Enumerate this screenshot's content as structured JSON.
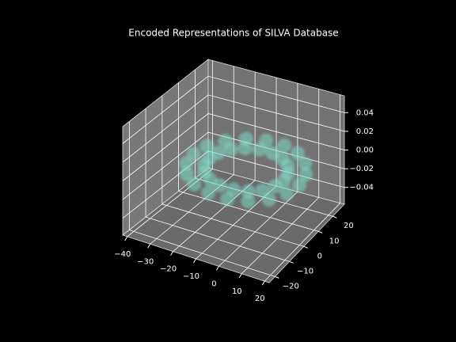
{
  "chart_data": {
    "type": "scatter3d",
    "title": "Encoded Representations of SILVA Database",
    "color": "#7fdcc8",
    "grid": true,
    "x": [
      18,
      16.6,
      12.4,
      6,
      -1.8,
      -10.2,
      -18,
      -24.4,
      -28.6,
      -30,
      -28.6,
      -24.4,
      -18,
      -10.2,
      -1.8,
      6,
      12.4,
      16.6,
      11,
      10,
      7,
      2.5,
      -3,
      -9,
      -14.5,
      -19,
      -22,
      -23,
      -22,
      -19,
      -14.5,
      -9,
      -3,
      2.5,
      7,
      10
    ],
    "y": [
      3,
      9.5,
      15.2,
      19.5,
      21.7,
      21.7,
      19.5,
      15.2,
      9.5,
      3,
      -3.5,
      -9.2,
      -13.5,
      -15.7,
      -15.7,
      -13.5,
      -9.2,
      -3.5,
      3,
      7.4,
      11.4,
      14.3,
      15.8,
      15.8,
      14.3,
      11.4,
      7.4,
      3,
      -1.4,
      -5.4,
      -8.3,
      -9.8,
      -9.8,
      -8.3,
      -5.4,
      -1.4
    ],
    "z": [
      0,
      0,
      0,
      0,
      0,
      0,
      0,
      0,
      0,
      0,
      0,
      0,
      0,
      0,
      0,
      0,
      0,
      0,
      0,
      0,
      0,
      0,
      0,
      0,
      0,
      0,
      0,
      0,
      0,
      0,
      0,
      0,
      0,
      0,
      0,
      0
    ],
    "xlim": [
      -42,
      22
    ],
    "xticks": [
      {
        "value": -40,
        "label": "−40"
      },
      {
        "value": -30,
        "label": "−30"
      },
      {
        "value": -20,
        "label": "−20"
      },
      {
        "value": -10,
        "label": "−10"
      },
      0,
      10,
      20
    ],
    "ylim": [
      -24,
      28
    ],
    "yticks": [
      {
        "value": -20,
        "label": "−20"
      },
      {
        "value": -10,
        "label": "−10"
      },
      0,
      10,
      20
    ],
    "zlim": [
      -0.058,
      0.058
    ],
    "zticks": [
      {
        "value": -0.04,
        "label": "−0.04"
      },
      {
        "value": -0.02,
        "label": "−0.02"
      },
      {
        "value": 0,
        "label": "0.00"
      },
      0.02,
      0.04
    ]
  }
}
